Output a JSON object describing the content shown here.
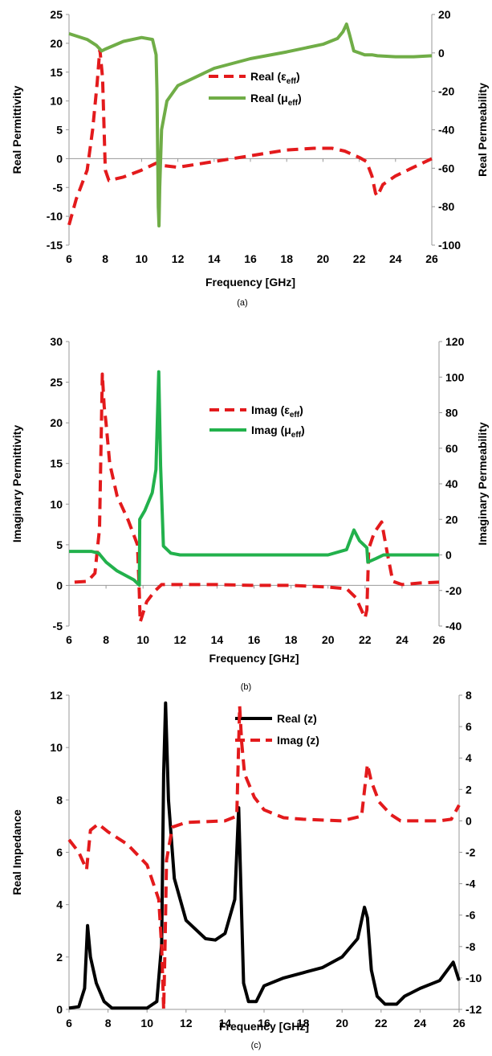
{
  "chart_data": [
    {
      "panel": "(a)",
      "type": "line",
      "xlabel": "Frequency [GHz]",
      "ylabel": "Real Permittivity",
      "y2label": "Real Permeability",
      "xlim": [
        6,
        26
      ],
      "xticks": [
        "6",
        "8",
        "10",
        "12",
        "14",
        "16",
        "18",
        "20",
        "22",
        "24",
        "26"
      ],
      "ylim": [
        -15,
        25
      ],
      "yticks": [
        "-15",
        "-10",
        "-5",
        "0",
        "5",
        "10",
        "15",
        "20",
        "25"
      ],
      "y2lim": [
        -100,
        20
      ],
      "y2ticks": [
        "-100",
        "-80",
        "-60",
        "-40",
        "-20",
        "0",
        "20"
      ],
      "legend_position": "center-right",
      "series": [
        {
          "name": "Real (ε_eff)",
          "legend_main": "Real (ε",
          "legend_sub": "eff",
          "legend_close": ")",
          "axis": "left",
          "color": "#e31a1c",
          "style": "dashed",
          "x": [
            6,
            6.4,
            7.0,
            7.3,
            7.55,
            7.7,
            7.85,
            8.0,
            8.2,
            9.0,
            10.0,
            10.8,
            11.2,
            12,
            14,
            16,
            18,
            19.5,
            20.5,
            21.2,
            22.0,
            22.4,
            22.7,
            22.9,
            23.0,
            23.3,
            24,
            25,
            26
          ],
          "y": [
            -11.5,
            -7,
            -2,
            5,
            13,
            19,
            14,
            -2,
            -3.8,
            -3.2,
            -2,
            -0.8,
            -1.2,
            -1.5,
            -0.5,
            0.5,
            1.5,
            1.8,
            1.8,
            1.3,
            0.2,
            -0.5,
            -3,
            -6,
            -6.5,
            -4.5,
            -3,
            -1.5,
            0
          ]
        },
        {
          "name": "Real (μ_eff)",
          "legend_main": "Real (μ",
          "legend_sub": "eff",
          "legend_close": ")",
          "axis": "right",
          "color": "#70ad47",
          "style": "solid",
          "x": [
            6,
            7,
            7.5,
            7.8,
            8.0,
            9.0,
            10.0,
            10.6,
            10.8,
            10.85,
            10.92,
            10.96,
            11.0,
            11.1,
            11.4,
            12,
            14,
            16,
            18,
            20,
            20.8,
            21.1,
            21.3,
            21.45,
            21.7,
            22.0,
            22.3,
            22.7,
            23,
            24,
            25,
            26
          ],
          "y": [
            10,
            7,
            4,
            1,
            2,
            6,
            8,
            7,
            -1,
            -20,
            -80,
            -90,
            -70,
            -40,
            -25,
            -17,
            -8,
            -3,
            0.5,
            4.5,
            7.5,
            11,
            15,
            10,
            1,
            0,
            -1,
            -1,
            -1.5,
            -2,
            -2,
            -1.5
          ]
        }
      ]
    },
    {
      "panel": "(b)",
      "type": "line",
      "xlabel": "Frequency [GHz]",
      "ylabel": "Imaginary Permittivity",
      "y2label": "Imaginary Permeability",
      "xlim": [
        6,
        26
      ],
      "xticks": [
        "6",
        "8",
        "10",
        "12",
        "14",
        "16",
        "18",
        "20",
        "22",
        "24",
        "26"
      ],
      "ylim": [
        -5,
        30
      ],
      "yticks": [
        "-5",
        "0",
        "5",
        "10",
        "15",
        "20",
        "25",
        "30"
      ],
      "y2lim": [
        -40,
        120
      ],
      "y2ticks": [
        "-40",
        "-20",
        "0",
        "20",
        "40",
        "60",
        "80",
        "100",
        "120"
      ],
      "legend_position": "center-right",
      "series": [
        {
          "name": "Imag (ε_eff)",
          "legend_main": "Imag (ε",
          "legend_sub": "eff",
          "legend_close": ")",
          "axis": "left",
          "color": "#e31a1c",
          "style": "dashed",
          "x": [
            6.3,
            7.0,
            7.4,
            7.65,
            7.8,
            7.9,
            8.0,
            8.2,
            8.6,
            9.2,
            9.7,
            9.8,
            9.85,
            10.2,
            10.6,
            11.0,
            12,
            14,
            16,
            18,
            20,
            21.0,
            21.5,
            21.8,
            22.0,
            22.1,
            22.2,
            22.5,
            22.9,
            23.2,
            23.5,
            24,
            25,
            26
          ],
          "y": [
            0.4,
            0.5,
            1.5,
            7,
            26,
            22,
            20,
            15,
            11,
            8,
            5,
            -1,
            -4.5,
            -2,
            -0.8,
            0.1,
            0.1,
            0.1,
            0,
            0,
            -0.2,
            -0.4,
            -1.5,
            -3,
            -4,
            -3,
            4.5,
            6.5,
            7.8,
            4,
            0.5,
            0.1,
            0.3,
            0.4
          ]
        },
        {
          "name": "Imag (μ_eff)",
          "legend_main": "Imag (μ",
          "legend_sub": "eff",
          "legend_close": ")",
          "axis": "right",
          "color": "#22b14c",
          "style": "solid",
          "x": [
            6,
            7.2,
            7.6,
            8.0,
            8.6,
            9.5,
            9.8,
            9.82,
            10.1,
            10.5,
            10.7,
            10.85,
            10.95,
            11.1,
            11.5,
            12,
            14,
            16,
            18,
            20,
            21.0,
            21.4,
            21.7,
            22.1,
            22.15,
            22.6,
            23,
            24,
            25,
            26
          ],
          "y": [
            2,
            2,
            1,
            -4,
            -9,
            -14,
            -17,
            20,
            25,
            35,
            48,
            103,
            50,
            5,
            1,
            0,
            0,
            0,
            0,
            0,
            3,
            14,
            8,
            4,
            -4,
            -2,
            0,
            0,
            0,
            0
          ]
        }
      ]
    },
    {
      "panel": "(c)",
      "type": "line",
      "xlabel": "Frequency [GHz]",
      "ylabel": "Real Impedance",
      "y2label": "",
      "xlim": [
        6,
        26
      ],
      "xticks": [
        "6",
        "8",
        "10",
        "12",
        "14",
        "16",
        "18",
        "20",
        "22",
        "24",
        "26"
      ],
      "ylim": [
        0,
        12
      ],
      "yticks": [
        "0",
        "2",
        "4",
        "6",
        "8",
        "10",
        "12"
      ],
      "y2lim": [
        -12,
        8
      ],
      "y2ticks": [
        "-12",
        "-10",
        "-8",
        "-6",
        "-4",
        "-2",
        "0",
        "2",
        "4",
        "6",
        "8"
      ],
      "legend_position": "top-right",
      "series": [
        {
          "name": "Real (z)",
          "legend_main": "Real (z)",
          "legend_sub": "",
          "legend_close": "",
          "axis": "left",
          "color": "#000000",
          "style": "solid",
          "x": [
            6,
            6.5,
            6.8,
            6.95,
            7.1,
            7.4,
            7.8,
            8.2,
            9,
            10,
            10.5,
            10.75,
            10.85,
            10.95,
            11.1,
            11.4,
            12,
            13,
            13.5,
            14,
            14.5,
            14.7,
            14.8,
            14.95,
            15.2,
            15.6,
            16,
            17,
            18,
            19,
            20,
            20.8,
            21.15,
            21.3,
            21.5,
            21.8,
            22.2,
            22.8,
            23.2,
            24,
            25,
            25.7,
            26
          ],
          "y": [
            0.05,
            0.1,
            0.8,
            3.2,
            2.0,
            1.0,
            0.3,
            0.05,
            0.05,
            0.05,
            0.3,
            2.5,
            9,
            11.7,
            8,
            5,
            3.4,
            2.7,
            2.65,
            2.9,
            4.2,
            7.7,
            5,
            1.0,
            0.3,
            0.3,
            0.9,
            1.2,
            1.4,
            1.6,
            2.0,
            2.7,
            3.9,
            3.5,
            1.5,
            0.5,
            0.2,
            0.2,
            0.5,
            0.8,
            1.1,
            1.8,
            1.1
          ]
        },
        {
          "name": "Imag (z)",
          "legend_main": "Imag (z)",
          "legend_sub": "",
          "legend_close": "",
          "axis": "right",
          "color": "#e31a1c",
          "style": "dashed",
          "x": [
            6,
            6.5,
            6.9,
            7.1,
            7.5,
            8.0,
            9.0,
            10.0,
            10.6,
            10.75,
            10.85,
            10.92,
            11.0,
            11.3,
            12,
            14,
            14.6,
            14.75,
            14.85,
            15.0,
            15.5,
            16,
            17,
            18,
            20,
            21.0,
            21.3,
            21.5,
            21.9,
            22.5,
            23,
            24,
            25,
            25.6,
            26
          ],
          "y": [
            -1.2,
            -2,
            -3.1,
            -0.6,
            -0.2,
            -0.7,
            -1.5,
            -2.8,
            -5,
            -8,
            -12,
            -8,
            -2.5,
            -0.4,
            -0.1,
            0,
            0.3,
            7.3,
            5,
            3,
            1.5,
            0.7,
            0.2,
            0.1,
            0,
            0.3,
            3.6,
            2.5,
            1.2,
            0.4,
            0,
            0,
            0,
            0.1,
            1.0
          ]
        }
      ]
    }
  ],
  "captions": [
    "(a)",
    "(b)",
    "(c)"
  ]
}
